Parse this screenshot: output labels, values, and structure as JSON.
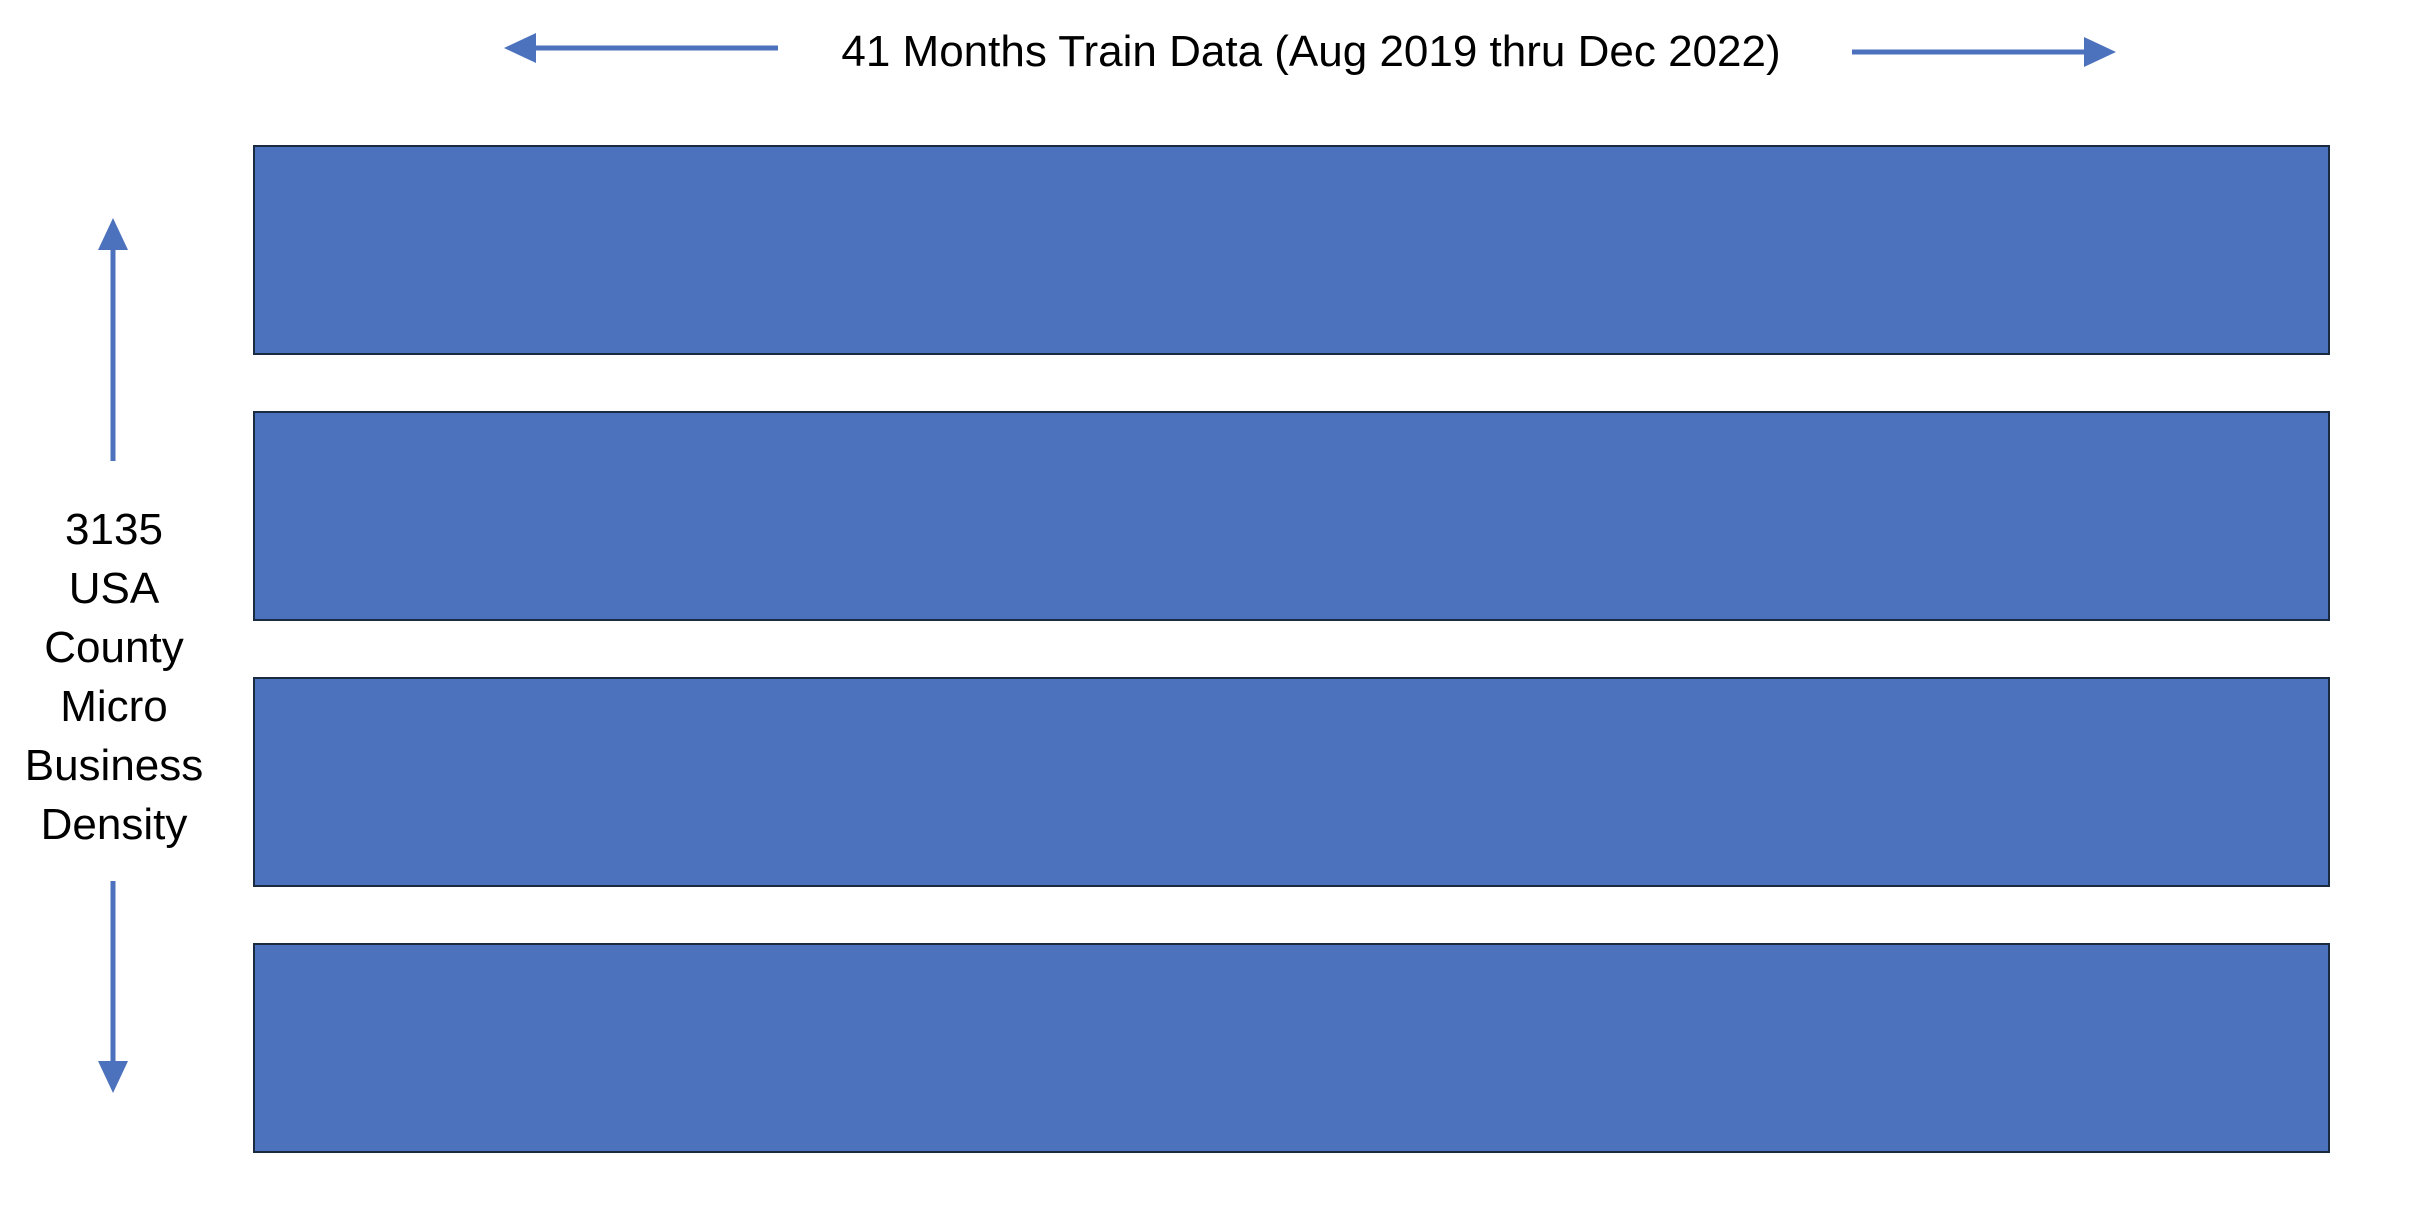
{
  "diagram": {
    "horizontal_label": "41 Months Train Data (Aug 2019 thru Dec 2022)",
    "vertical_label_lines": [
      "3135",
      "USA",
      "County",
      "Micro",
      "Business",
      "Density"
    ],
    "band_count": 4,
    "colors": {
      "band_fill": "#4c72bd",
      "band_border": "#1a2a40",
      "arrow": "#4c72bd",
      "background": "#ffffff"
    }
  }
}
